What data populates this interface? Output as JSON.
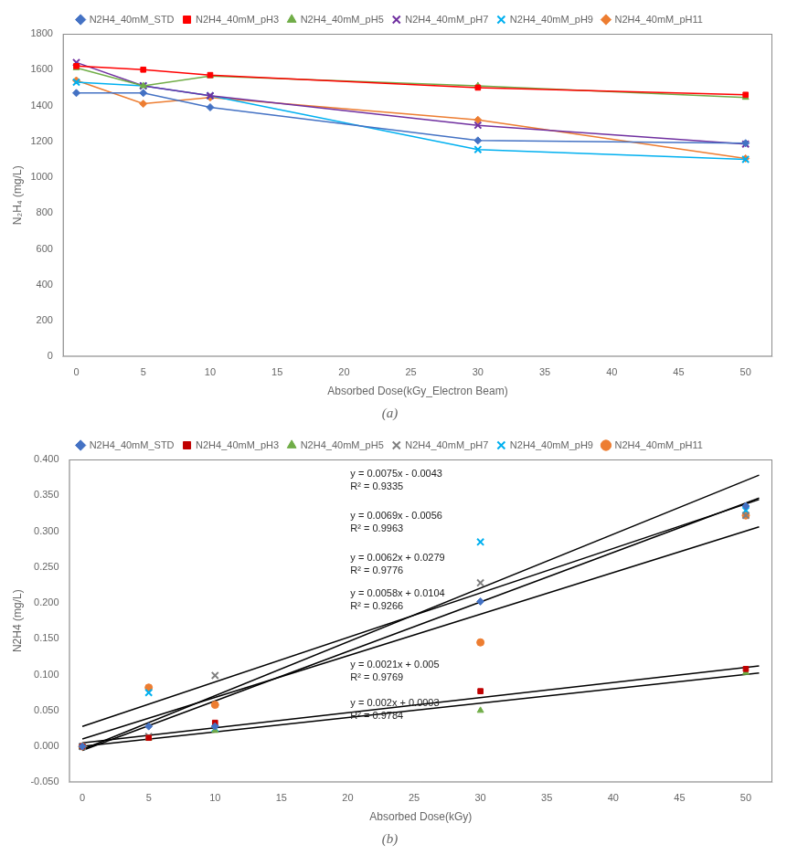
{
  "chart_data": [
    {
      "type": "line",
      "title": "(a)",
      "x_label": "Absorbed Dose(kGy_Electron Beam)",
      "y_label": "N₂H₄ (mg/L)",
      "xlim": [
        -1,
        52
      ],
      "ylim": [
        0,
        1800
      ],
      "xticks": [
        0,
        5,
        10,
        15,
        20,
        25,
        30,
        35,
        40,
        45,
        50
      ],
      "yticks": [
        0,
        200,
        400,
        600,
        800,
        1000,
        1200,
        1400,
        1600,
        1800
      ],
      "grid": false,
      "legend": "top",
      "series": [
        {
          "name": "N2H4_40mM_STD",
          "color": "#4472C4",
          "marker": "diamond",
          "line_style": "solid",
          "x": [
            0,
            5,
            10,
            30,
            50
          ],
          "values": [
            1470,
            1470,
            1390,
            1205,
            1190
          ]
        },
        {
          "name": "N2H4_40mM_pH3",
          "color": "#FF0000",
          "marker": "square",
          "line_style": "solid",
          "x": [
            0,
            5,
            10,
            30,
            50
          ],
          "values": [
            1620,
            1600,
            1570,
            1500,
            1460
          ]
        },
        {
          "name": "N2H4_40mM_pH5",
          "color": "#70AD47",
          "marker": "triangle",
          "line_style": "solid",
          "x": [
            0,
            5,
            10,
            30,
            50
          ],
          "values": [
            1610,
            1510,
            1565,
            1510,
            1445
          ]
        },
        {
          "name": "N2H4_40mM_pH7",
          "color": "#7030A0",
          "marker": "x",
          "line_style": "solid",
          "x": [
            0,
            5,
            10,
            30,
            50
          ],
          "values": [
            1640,
            1510,
            1455,
            1290,
            1185
          ]
        },
        {
          "name": "N2H4_40mM_pH9",
          "color": "#00B0F0",
          "marker": "x",
          "line_style": "solid",
          "x": [
            0,
            5,
            10,
            30,
            50
          ],
          "values": [
            1530,
            1510,
            1455,
            1155,
            1100
          ]
        },
        {
          "name": "N2H4_40mM_pH11",
          "color": "#ED7D31",
          "marker": "diamond",
          "line_style": "solid",
          "x": [
            0,
            5,
            10,
            30,
            50
          ],
          "values": [
            1540,
            1410,
            1445,
            1320,
            1105
          ]
        }
      ]
    },
    {
      "type": "scatter",
      "title": "(b)",
      "x_label": "Absorbed Dose(kGy)",
      "y_label": "N2H4 (mg/L)",
      "xlim": [
        -1,
        52
      ],
      "ylim": [
        -0.05,
        0.4
      ],
      "xticks": [
        0,
        5,
        10,
        15,
        20,
        25,
        30,
        35,
        40,
        45,
        50
      ],
      "yticks": [
        {
          "value": -0.05,
          "label": "-0.050"
        },
        {
          "value": 0.0,
          "label": "0.000"
        },
        {
          "value": 0.05,
          "label": "0.050"
        },
        {
          "value": 0.1,
          "label": "0.100"
        },
        {
          "value": 0.15,
          "label": "0.150"
        },
        {
          "value": 0.2,
          "label": "0.200"
        },
        {
          "value": 0.25,
          "label": "0.250"
        },
        {
          "value": 0.3,
          "label": "0.300"
        },
        {
          "value": 0.35,
          "label": "0.350"
        },
        {
          "value": 0.4,
          "label": "0.400"
        }
      ],
      "grid": false,
      "legend": "top",
      "series": [
        {
          "name": "N2H4_40mM_STD",
          "color": "#4472C4",
          "marker": "diamond",
          "x": [
            0,
            5,
            10,
            30,
            50
          ],
          "values": [
            0.0,
            0.028,
            0.028,
            0.202,
            0.335
          ]
        },
        {
          "name": "N2H4_40mM_pH3",
          "color": "#C00000",
          "marker": "square",
          "x": [
            0,
            5,
            10,
            30,
            50
          ],
          "values": [
            0.0,
            0.012,
            0.033,
            0.077,
            0.108
          ]
        },
        {
          "name": "N2H4_40mM_pH5",
          "color": "#70AD47",
          "marker": "triangle",
          "x": [
            0,
            5,
            10,
            30,
            50
          ],
          "values": [
            0.0,
            0.011,
            0.022,
            0.05,
            0.103
          ]
        },
        {
          "name": "N2H4_40mM_pH7",
          "color": "#808080",
          "marker": "x",
          "x": [
            0,
            5,
            10,
            30,
            50
          ],
          "values": [
            0.0,
            0.014,
            0.099,
            0.228,
            0.322
          ]
        },
        {
          "name": "N2H4_40mM_pH9",
          "color": "#00B0F0",
          "marker": "x",
          "x": [
            0,
            5,
            10,
            30,
            50
          ],
          "values": [
            0.0,
            0.075,
            0.025,
            0.285,
            0.329
          ]
        },
        {
          "name": "N2H4_40mM_pH11",
          "color": "#ED7D31",
          "marker": "circle",
          "x": [
            0,
            5,
            10,
            30,
            50
          ],
          "values": [
            0.0,
            0.082,
            0.058,
            0.145,
            0.322
          ]
        },
        {
          "type": "line",
          "color": "#000000",
          "line_style": "solid",
          "x": [
            0,
            51
          ],
          "values": [
            -0.0043,
            0.3782
          ]
        },
        {
          "type": "line",
          "color": "#000000",
          "line_style": "solid",
          "x": [
            0,
            51
          ],
          "values": [
            -0.0056,
            0.3463
          ]
        },
        {
          "type": "line",
          "color": "#000000",
          "line_style": "solid",
          "x": [
            0,
            51
          ],
          "values": [
            0.0279,
            0.3441
          ]
        },
        {
          "type": "line",
          "color": "#000000",
          "line_style": "solid",
          "x": [
            0,
            51
          ],
          "values": [
            0.0104,
            0.3062
          ]
        },
        {
          "type": "line",
          "color": "#000000",
          "line_style": "solid",
          "x": [
            0,
            51
          ],
          "values": [
            0.005,
            0.1121
          ]
        },
        {
          "type": "line",
          "color": "#000000",
          "line_style": "solid",
          "x": [
            0,
            51
          ],
          "values": [
            0.0003,
            0.1023
          ]
        }
      ],
      "annotations": [
        "y = 0.0075x - 0.0043\nR² = 0.9335",
        "y = 0.0069x - 0.0056\nR² = 0.9963",
        "y = 0.0062x + 0.0279\nR² = 0.9776",
        "y = 0.0058x + 0.0104\nR² = 0.9266",
        "y = 0.0021x + 0.005\nR² = 0.9769",
        "y = 0.002x + 0.0003\nR² = 0.9784"
      ]
    }
  ]
}
